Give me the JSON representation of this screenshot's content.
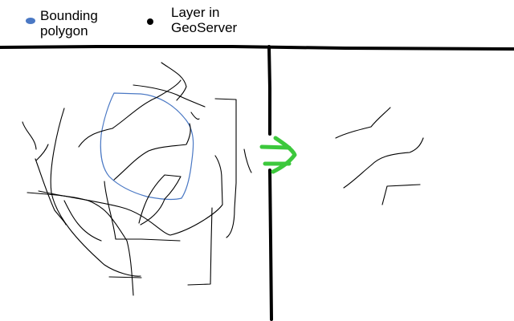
{
  "legend": {
    "bounding_polygon": {
      "line1": "Bounding",
      "line2": "polygon",
      "color": "#4a78c4"
    },
    "layer": {
      "line1": "Layer in",
      "line2": "GeoServer",
      "color": "#000000"
    }
  },
  "arrow_color": "#3cc83c",
  "outline_color": "#000000"
}
